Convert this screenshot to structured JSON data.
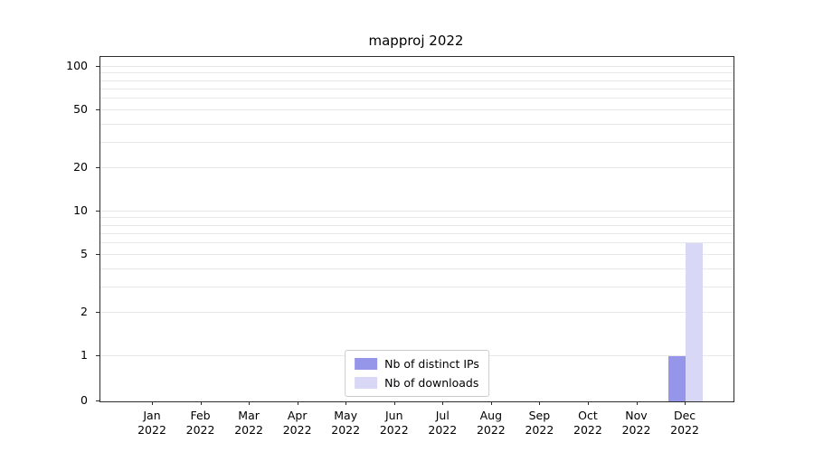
{
  "chart_data": {
    "type": "bar",
    "title": "mapproj 2022",
    "categories": [
      "Jan",
      "Feb",
      "Mar",
      "Apr",
      "May",
      "Jun",
      "Jul",
      "Aug",
      "Sep",
      "Oct",
      "Nov",
      "Dec"
    ],
    "year_label": "2022",
    "series": [
      {
        "name": "Nb of distinct IPs",
        "color": "#9595ea",
        "values": [
          0,
          0,
          0,
          0,
          0,
          0,
          0,
          0,
          0,
          0,
          0,
          1
        ]
      },
      {
        "name": "Nb of downloads",
        "color": "#d8d8f6",
        "values": [
          0,
          0,
          0,
          0,
          0,
          0,
          0,
          0,
          0,
          0,
          0,
          6
        ]
      }
    ],
    "yscale": "symlog",
    "yticks": [
      0,
      1,
      2,
      5,
      10,
      20,
      50,
      100
    ],
    "gridline_values": [
      1,
      2,
      3,
      4,
      5,
      6,
      7,
      8,
      9,
      10,
      20,
      30,
      40,
      50,
      60,
      70,
      80,
      90,
      100
    ],
    "ylim": [
      0,
      115
    ],
    "grid": "horizontal",
    "legend_position": "lower center"
  }
}
